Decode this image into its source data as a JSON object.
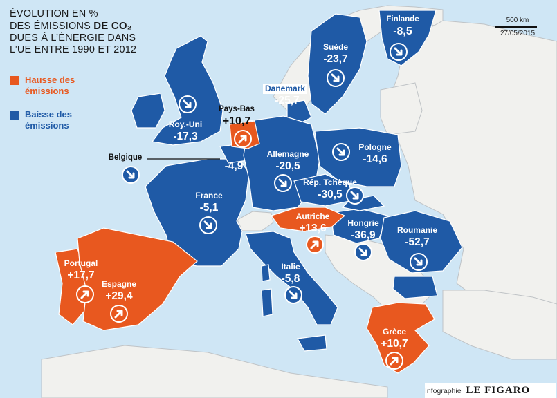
{
  "title": {
    "line1": "ÉVOLUTION EN %",
    "line2_pre": "DES ÉMISSIONS ",
    "line2_bold": "DE CO₂",
    "line3": "DUES À L’ÉNERGIE DANS",
    "line4": "L’UE ENTRE 1990 ET 2012"
  },
  "legend": {
    "increase_label": "Hausse des émissions",
    "decrease_label": "Baisse des émissions",
    "increase_color": "#e8581f",
    "decrease_color": "#1f5aa6"
  },
  "scale": {
    "label": "500 km",
    "date": "27/05/2015"
  },
  "credit": {
    "prefix": "Infographie",
    "brand": "LE FIGARO"
  },
  "countries": [
    {
      "name": "Finlande",
      "value": "-8,5",
      "trend": "down"
    },
    {
      "name": "Suède",
      "value": "-23,7",
      "trend": "down"
    },
    {
      "name": "Danemark",
      "value": "-25,7",
      "trend": "down"
    },
    {
      "name": "Roy.-Uni",
      "value": "-17,3",
      "trend": "down"
    },
    {
      "name": "Pays-Bas",
      "value": "+10,7",
      "trend": "up"
    },
    {
      "name": "Belgique",
      "value": "-4,9",
      "trend": "down"
    },
    {
      "name": "Allemagne",
      "value": "-20,5",
      "trend": "down"
    },
    {
      "name": "Pologne",
      "value": "-14,6",
      "trend": "down"
    },
    {
      "name": "Rép. Tchèque",
      "value": "-30,5",
      "trend": "down"
    },
    {
      "name": "France",
      "value": "-5,1",
      "trend": "down"
    },
    {
      "name": "Autriche",
      "value": "+13,6",
      "trend": "up"
    },
    {
      "name": "Hongrie",
      "value": "-36,9",
      "trend": "down"
    },
    {
      "name": "Roumanie",
      "value": "-52,7",
      "trend": "down"
    },
    {
      "name": "Portugal",
      "value": "+17,7",
      "trend": "up"
    },
    {
      "name": "Espagne",
      "value": "+29,4",
      "trend": "up"
    },
    {
      "name": "Italie",
      "value": "-5,8",
      "trend": "down"
    },
    {
      "name": "Grèce",
      "value": "+10,7",
      "trend": "up"
    }
  ]
}
